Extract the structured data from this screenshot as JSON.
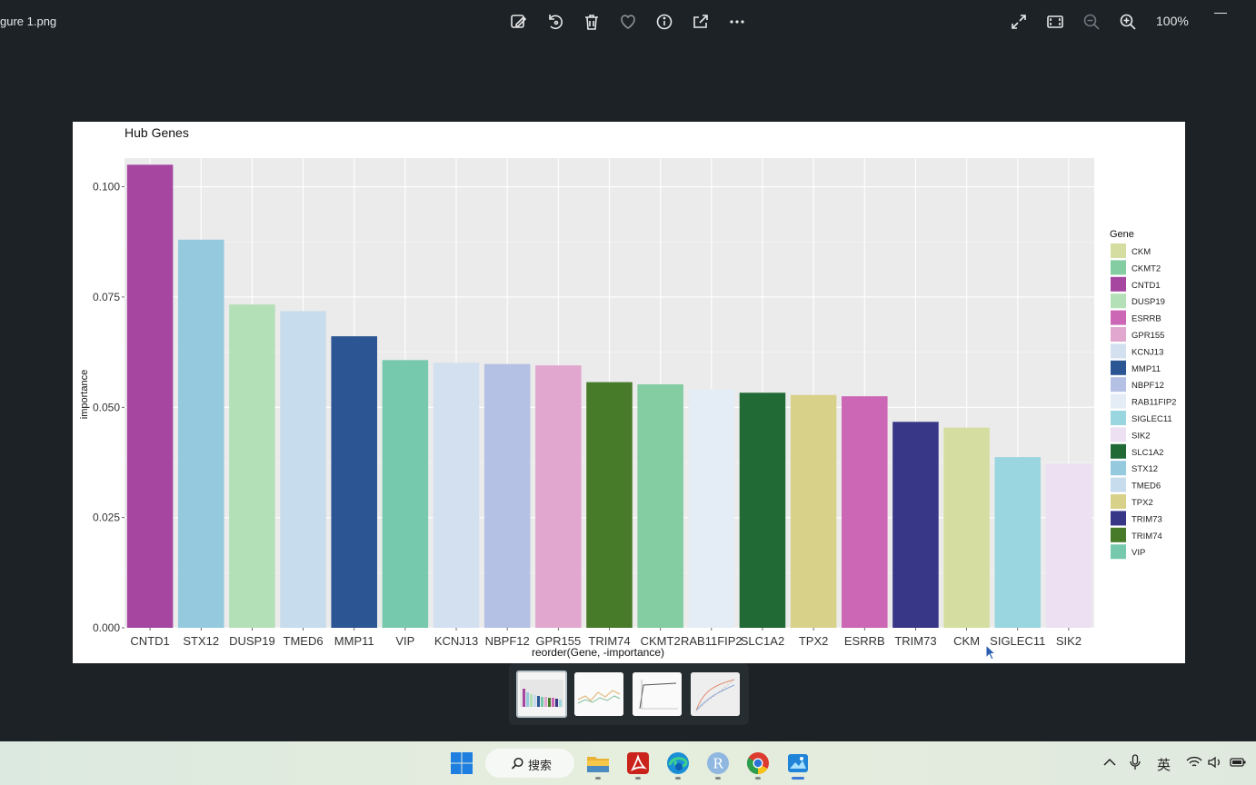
{
  "window": {
    "file_name": "gure 1.png",
    "zoom_label": "100%"
  },
  "toolbar": {
    "icons": [
      "edit-image-icon",
      "rotate-icon",
      "delete-icon",
      "favorite-icon",
      "info-icon",
      "share-icon",
      "more-icon"
    ],
    "right_icons": [
      "fullscreen-icon",
      "fit-window-icon",
      "zoom-out-icon",
      "zoom-in-icon"
    ]
  },
  "chart_data": {
    "type": "bar",
    "title": "Hub Genes",
    "xlabel": "reorder(Gene, -importance)",
    "ylabel": "importance",
    "ylim": [
      0,
      0.1065
    ],
    "yticks": [
      0.0,
      0.025,
      0.05,
      0.075,
      0.1
    ],
    "ytick_labels": [
      "0.000",
      "0.025",
      "0.050",
      "0.075",
      "0.100"
    ],
    "grid": true,
    "legend_title": "Gene",
    "legend_position": "right",
    "categories": [
      "CNTD1",
      "STX12",
      "DUSP19",
      "TMED6",
      "MMP11",
      "VIP",
      "KCNJ13",
      "NBPF12",
      "GPR155",
      "TRIM74",
      "CKMT2",
      "RAB11FIP2",
      "SLC1A2",
      "TPX2",
      "ESRRB",
      "TRIM73",
      "CKM",
      "SIGLEC11",
      "SIK2"
    ],
    "values": [
      0.105,
      0.088,
      0.0733,
      0.0718,
      0.0661,
      0.0607,
      0.0601,
      0.0598,
      0.0595,
      0.0557,
      0.0552,
      0.0541,
      0.0533,
      0.0528,
      0.0525,
      0.0467,
      0.0454,
      0.0387,
      0.0372
    ],
    "colors": [
      "#a646a1",
      "#94c9de",
      "#b4e0b8",
      "#c7dcec",
      "#2c5594",
      "#76c9ad",
      "#d2e0f0",
      "#b4c1e5",
      "#e1a7ce",
      "#477a29",
      "#84cca2",
      "#e4ecf6",
      "#216a36",
      "#d8d18a",
      "#cc67b6",
      "#373687",
      "#d5dea0",
      "#9ad6df",
      "#ece0f2"
    ],
    "legend_order": [
      "CKM",
      "CKMT2",
      "CNTD1",
      "DUSP19",
      "ESRRB",
      "GPR155",
      "KCNJ13",
      "MMP11",
      "NBPF12",
      "RAB11FIP2",
      "SIGLEC11",
      "SIK2",
      "SLC1A2",
      "STX12",
      "TMED6",
      "TPX2",
      "TRIM73",
      "TRIM74",
      "VIP"
    ]
  },
  "filmstrip": {
    "thumbnails": [
      "thumbnail-1",
      "thumbnail-2",
      "thumbnail-3",
      "thumbnail-4"
    ],
    "selected_index": 0
  },
  "taskbar": {
    "search_label": "搜索",
    "ime_label": "英"
  }
}
